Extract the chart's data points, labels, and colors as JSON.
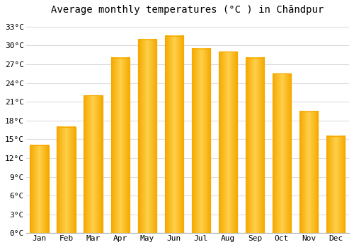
{
  "title": "Average monthly temperatures (°C ) in Chāndpur",
  "months": [
    "Jan",
    "Feb",
    "Mar",
    "Apr",
    "May",
    "Jun",
    "Jul",
    "Aug",
    "Sep",
    "Oct",
    "Nov",
    "Dec"
  ],
  "temperatures": [
    14,
    17,
    22,
    28,
    31,
    31.5,
    29.5,
    29,
    28,
    25.5,
    19.5,
    15.5
  ],
  "bar_color_center": "#FFD04A",
  "bar_color_edge": "#F5A800",
  "background_color": "#FFFFFF",
  "grid_color": "#DDDDDD",
  "ylim": [
    0,
    34
  ],
  "yticks": [
    0,
    3,
    6,
    9,
    12,
    15,
    18,
    21,
    24,
    27,
    30,
    33
  ],
  "ylabel_suffix": "°C",
  "title_fontsize": 10,
  "tick_fontsize": 8,
  "font_family": "monospace"
}
